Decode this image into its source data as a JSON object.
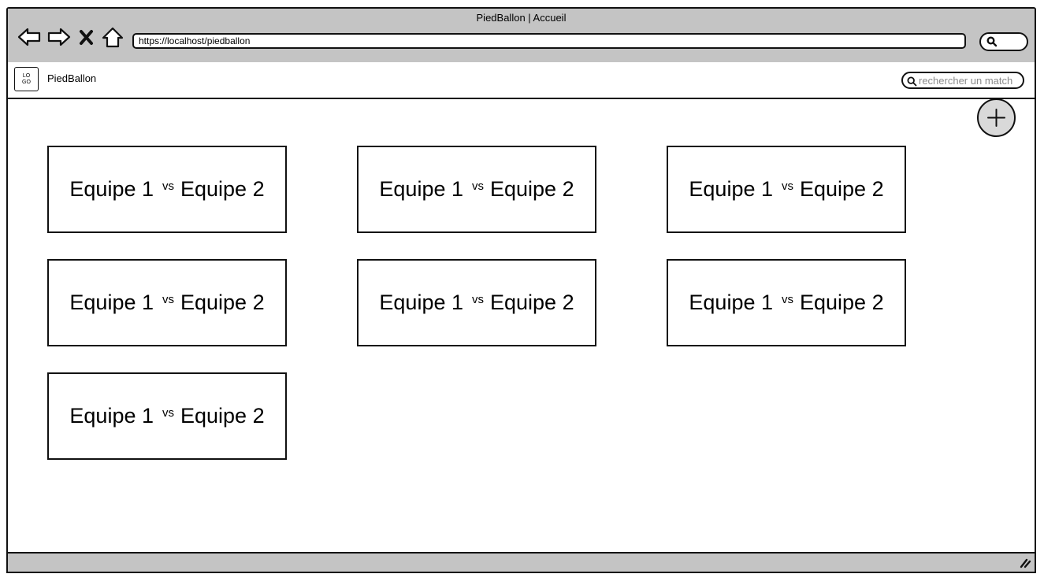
{
  "window": {
    "title": "PiedBallon | Accueil"
  },
  "browser": {
    "url": "https://localhost/piedballon",
    "nav_icons": [
      "back-arrow-icon",
      "forward-arrow-icon",
      "close-x-icon",
      "home-icon"
    ]
  },
  "header": {
    "logo_text_top": "LO",
    "logo_text_bottom": "GO",
    "app_name": "PiedBallon",
    "search_placeholder": "rechercher un match"
  },
  "add_button_icon": "plus-icon",
  "matches": [
    {
      "home": "Equipe 1",
      "vs": "vs",
      "away": "Equipe 2"
    },
    {
      "home": "Equipe 1",
      "vs": "vs",
      "away": "Equipe 2"
    },
    {
      "home": "Equipe 1",
      "vs": "vs",
      "away": "Equipe 2"
    },
    {
      "home": "Equipe 1",
      "vs": "vs",
      "away": "Equipe 2"
    },
    {
      "home": "Equipe 1",
      "vs": "vs",
      "away": "Equipe 2"
    },
    {
      "home": "Equipe 1",
      "vs": "vs",
      "away": "Equipe 2"
    },
    {
      "home": "Equipe 1",
      "vs": "vs",
      "away": "Equipe 2"
    }
  ],
  "colors": {
    "chrome": "#c4c4c4",
    "border": "#111111",
    "add_button": "#d9d9d9"
  }
}
